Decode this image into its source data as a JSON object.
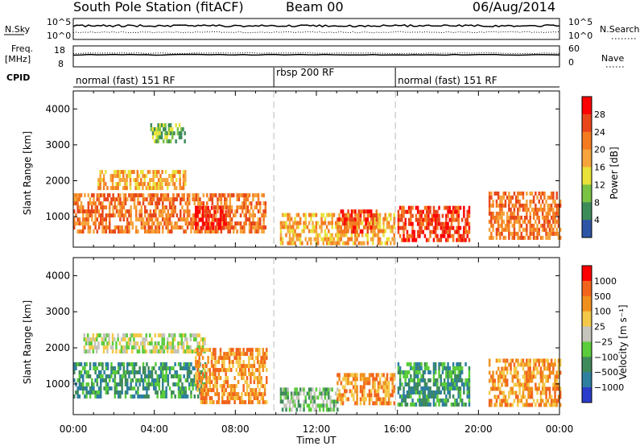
{
  "header": {
    "station": "South Pole Station (fitACF)",
    "beam": "Beam 00",
    "date": "06/Aug/2014"
  },
  "summary": {
    "nsky_label": "N.Sky",
    "nsearch_label": "N.Search",
    "noise_ticks": [
      "10^5",
      "10^0"
    ],
    "noise_ticks_right": [
      "10^5",
      "10^0"
    ],
    "freq_label_line1": "Freq.",
    "freq_label_line2": "[MHz]",
    "freq_ticks": [
      "18",
      "8"
    ],
    "nave_label": "Nave",
    "nave_ticks": [
      "60",
      "0"
    ],
    "cpid_label": "CPID",
    "cpid_segments": [
      {
        "label": "normal (fast) 151 RF",
        "start_hr": 0.0,
        "end_hr": 9.9
      },
      {
        "label": "rbsp 200 RF",
        "start_hr": 9.9,
        "end_hr": 15.9
      },
      {
        "label": "normal (fast) 151 RF",
        "start_hr": 15.9,
        "end_hr": 24.0
      }
    ]
  },
  "colors": {
    "power": [
      "#1f3fff",
      "#2e54a6",
      "#3c8c5a",
      "#79c243",
      "#e8e23a",
      "#f6a43b",
      "#f47a20",
      "#e8461a",
      "#ff0000"
    ],
    "velocity": [
      "#2a3cc9",
      "#2e7fa0",
      "#3f8a5b",
      "#5bcc3b",
      "#c4c4bc",
      "#f4c94a",
      "#f0901c",
      "#f2641c",
      "#ff0000"
    ],
    "dashed_line": "#bbbbbb",
    "trace": "#000000"
  },
  "chart_data": [
    {
      "type": "heatmap",
      "panel": "power",
      "ylabel": "Slant Range [km]",
      "xlabel": "",
      "xlim_hours": [
        0,
        24
      ],
      "ylim": [
        150,
        4500
      ],
      "yticks": [
        1000,
        2000,
        3000,
        4000
      ],
      "colorbar_label": "Power [dB]",
      "colorbar_ticks": [
        "4",
        "8",
        "12",
        "16",
        "20",
        "24",
        "28"
      ],
      "echo_regions": [
        {
          "t0": 0.0,
          "t1": 9.5,
          "r0": 550,
          "r1": 1650,
          "level": 6
        },
        {
          "t0": 1.2,
          "t1": 5.5,
          "r0": 1800,
          "r1": 2300,
          "level": 5
        },
        {
          "t0": 6.0,
          "t1": 7.5,
          "r0": 700,
          "r1": 1300,
          "level": 8
        },
        {
          "t0": 3.8,
          "t1": 5.5,
          "r0": 3100,
          "r1": 3600,
          "level": 3
        },
        {
          "t0": 10.2,
          "t1": 15.8,
          "r0": 300,
          "r1": 1100,
          "level": 5
        },
        {
          "t0": 13.0,
          "t1": 15.0,
          "r0": 600,
          "r1": 1200,
          "level": 7
        },
        {
          "t0": 16.0,
          "t1": 19.5,
          "r0": 400,
          "r1": 1300,
          "level": 7
        },
        {
          "t0": 20.5,
          "t1": 24.0,
          "r0": 400,
          "r1": 1700,
          "level": 6
        }
      ]
    },
    {
      "type": "heatmap",
      "panel": "velocity",
      "ylabel": "Slant Range [km]",
      "xlabel": "Time UT",
      "xlim_hours": [
        0,
        24
      ],
      "ylim": [
        150,
        4500
      ],
      "yticks": [
        1000,
        2000,
        3000,
        4000
      ],
      "xticks": [
        "00:00",
        "04:00",
        "08:00",
        "12:00",
        "16:00",
        "20:00",
        "00:00"
      ],
      "colorbar_label": "Velocity [m s⁻¹]",
      "colorbar_ticks": [
        "1000",
        "500",
        "100",
        "25",
        "−25",
        "−100",
        "−500",
        "−1000"
      ],
      "echo_regions": [
        {
          "t0": 0.0,
          "t1": 6.5,
          "r0": 600,
          "r1": 1600,
          "level": 2
        },
        {
          "t0": 0.5,
          "t1": 6.5,
          "r0": 1900,
          "r1": 2400,
          "level": 4
        },
        {
          "t0": 6.0,
          "t1": 9.5,
          "r0": 500,
          "r1": 2000,
          "level": 6
        },
        {
          "t0": 10.2,
          "t1": 13.0,
          "r0": 300,
          "r1": 900,
          "level": 3
        },
        {
          "t0": 13.0,
          "t1": 15.8,
          "r0": 500,
          "r1": 1300,
          "level": 6
        },
        {
          "t0": 16.0,
          "t1": 19.5,
          "r0": 400,
          "r1": 1600,
          "level": 2
        },
        {
          "t0": 20.5,
          "t1": 24.0,
          "r0": 400,
          "r1": 1700,
          "level": 6
        }
      ]
    }
  ]
}
